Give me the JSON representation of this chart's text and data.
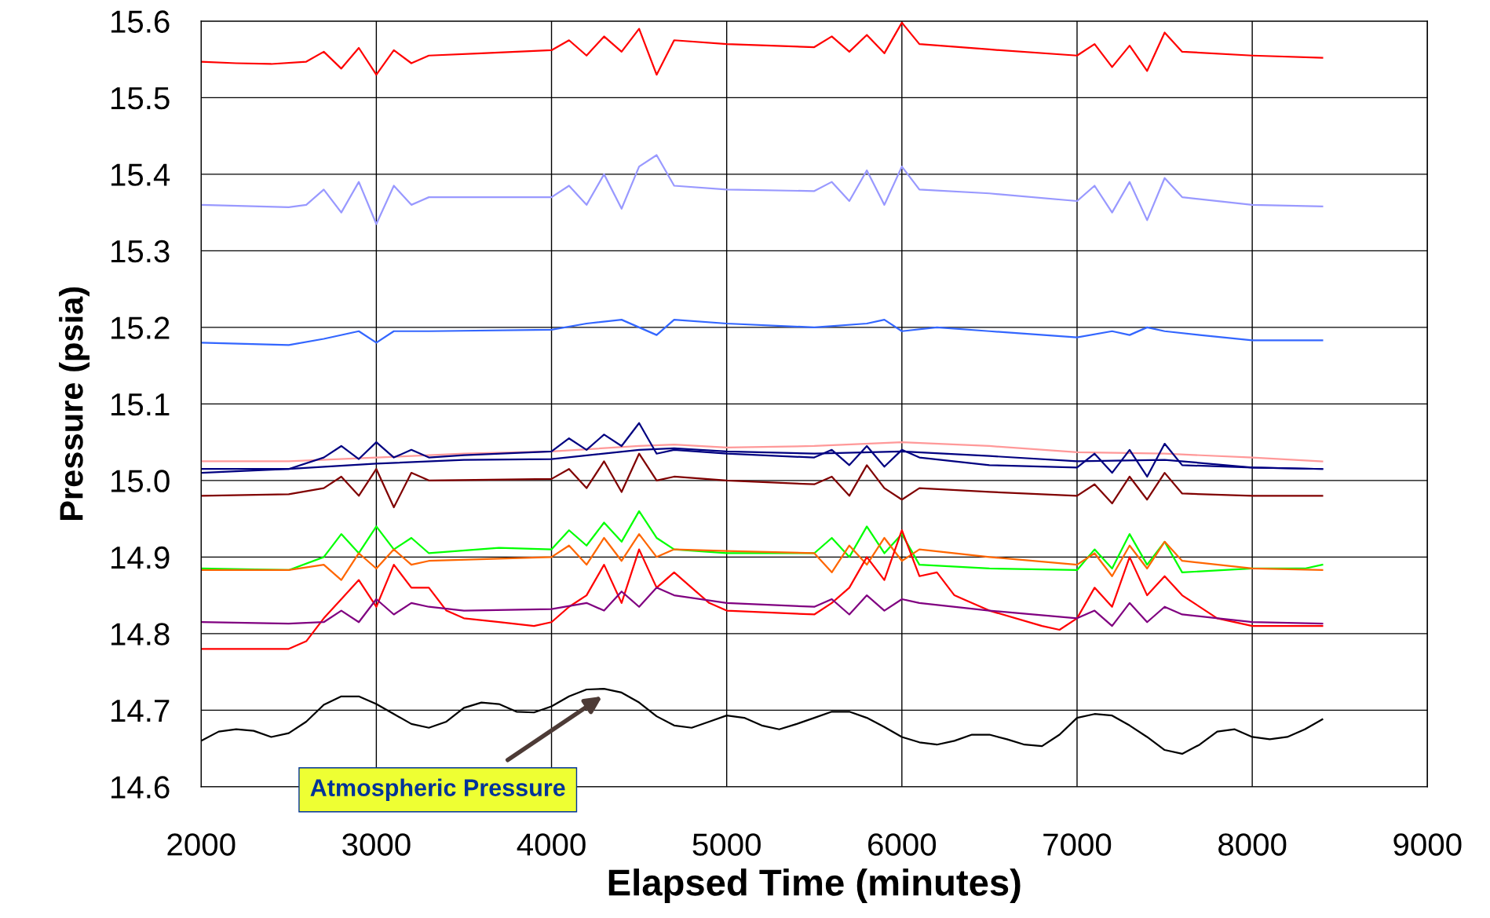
{
  "chart_data": {
    "type": "line",
    "xlabel": "Elapsed Time (minutes)",
    "ylabel": "Pressure (psia)",
    "xlim": [
      2000,
      9000
    ],
    "xticks": [
      2000,
      3000,
      4000,
      5000,
      6000,
      7000,
      8000,
      9000
    ],
    "ylim": [
      14.6,
      15.6
    ],
    "yticks": [
      {
        "value": 14.6,
        "label": "14.6"
      },
      {
        "value": 14.7,
        "label": "14.7"
      },
      {
        "value": 14.8,
        "label": "14.8"
      },
      {
        "value": 14.9,
        "label": "14.9"
      },
      {
        "value": 15.0,
        "label": "15.0"
      },
      {
        "value": 15.1,
        "label": "15.1"
      },
      {
        "value": 15.2,
        "label": "15.2"
      },
      {
        "value": 15.3,
        "label": "15.3"
      },
      {
        "value": 15.4,
        "label": "15.4"
      },
      {
        "value": 15.5,
        "label": "15.5"
      },
      {
        "value": 15.6,
        "label": "15.6"
      }
    ],
    "grid": true,
    "legend": false,
    "marker": "none",
    "line_style": "solid",
    "annotations": [
      "Atmospheric Pressure"
    ],
    "series": [
      {
        "color": "#ff0000",
        "x": [
          2000,
          2200,
          2400,
          2600,
          2700,
          2800,
          2900,
          3000,
          3100,
          3200,
          3300,
          3600,
          4000,
          4100,
          4200,
          4300,
          4400,
          4500,
          4600,
          4700,
          5000,
          5500,
          5600,
          5700,
          5800,
          5900,
          6000,
          6100,
          6500,
          7000,
          7100,
          7200,
          7300,
          7400,
          7500,
          7600,
          8000,
          8400
        ],
        "values": [
          15.547,
          15.545,
          15.544,
          15.547,
          15.56,
          15.538,
          15.565,
          15.53,
          15.562,
          15.545,
          15.555,
          15.558,
          15.562,
          15.575,
          15.555,
          15.58,
          15.56,
          15.59,
          15.53,
          15.575,
          15.57,
          15.566,
          15.58,
          15.56,
          15.582,
          15.558,
          15.598,
          15.57,
          15.563,
          15.555,
          15.57,
          15.54,
          15.568,
          15.535,
          15.585,
          15.56,
          15.555,
          15.552
        ]
      },
      {
        "color": "#9999ff",
        "x": [
          2000,
          2500,
          2600,
          2700,
          2800,
          2900,
          3000,
          3100,
          3200,
          3300,
          3600,
          4000,
          4100,
          4200,
          4300,
          4400,
          4500,
          4600,
          4700,
          5000,
          5500,
          5600,
          5700,
          5800,
          5900,
          6000,
          6100,
          6500,
          7000,
          7100,
          7200,
          7300,
          7400,
          7500,
          7600,
          8000,
          8400
        ],
        "values": [
          15.36,
          15.357,
          15.36,
          15.38,
          15.35,
          15.39,
          15.335,
          15.385,
          15.36,
          15.37,
          15.37,
          15.37,
          15.385,
          15.36,
          15.4,
          15.355,
          15.41,
          15.425,
          15.385,
          15.38,
          15.378,
          15.39,
          15.365,
          15.405,
          15.36,
          15.41,
          15.38,
          15.375,
          15.365,
          15.385,
          15.35,
          15.39,
          15.34,
          15.395,
          15.37,
          15.36,
          15.358
        ]
      },
      {
        "color": "#3366ff",
        "x": [
          2000,
          2500,
          2700,
          2900,
          3000,
          3100,
          3300,
          4000,
          4200,
          4400,
          4500,
          4600,
          4700,
          5000,
          5500,
          5800,
          5900,
          6000,
          6200,
          6500,
          7000,
          7200,
          7300,
          7400,
          7500,
          7700,
          8000,
          8400
        ],
        "values": [
          15.18,
          15.177,
          15.185,
          15.195,
          15.18,
          15.195,
          15.195,
          15.197,
          15.205,
          15.21,
          15.2,
          15.19,
          15.21,
          15.205,
          15.2,
          15.205,
          15.21,
          15.195,
          15.2,
          15.195,
          15.187,
          15.195,
          15.19,
          15.2,
          15.195,
          15.19,
          15.183,
          15.183
        ]
      },
      {
        "color": "#ff9999",
        "x": [
          2000,
          2500,
          3000,
          3500,
          4000,
          4500,
          4700,
          5000,
          5500,
          6000,
          6500,
          7000,
          7500,
          8000,
          8400
        ],
        "values": [
          15.025,
          15.025,
          15.03,
          15.035,
          15.038,
          15.045,
          15.047,
          15.043,
          15.045,
          15.05,
          15.045,
          15.037,
          15.035,
          15.03,
          15.025
        ]
      },
      {
        "color": "#000080",
        "x": [
          2000,
          2500,
          2700,
          2800,
          2900,
          3000,
          3100,
          3200,
          3300,
          3500,
          4000,
          4100,
          4200,
          4300,
          4400,
          4500,
          4600,
          4700,
          5000,
          5500,
          5600,
          5700,
          5800,
          5900,
          6000,
          6100,
          6500,
          7000,
          7100,
          7200,
          7300,
          7400,
          7500,
          7600,
          8000,
          8400
        ],
        "values": [
          15.01,
          15.015,
          15.03,
          15.045,
          15.028,
          15.05,
          15.03,
          15.04,
          15.03,
          15.033,
          15.038,
          15.055,
          15.04,
          15.06,
          15.045,
          15.075,
          15.035,
          15.04,
          15.035,
          15.03,
          15.04,
          15.02,
          15.045,
          15.018,
          15.04,
          15.03,
          15.02,
          15.017,
          15.035,
          15.01,
          15.04,
          15.005,
          15.048,
          15.02,
          15.017,
          15.015
        ]
      },
      {
        "color": "#000080",
        "x": [
          2000,
          2500,
          3000,
          3500,
          4000,
          4500,
          4700,
          5000,
          5500,
          6000,
          6500,
          7000,
          7500,
          8000,
          8400
        ],
        "values": [
          15.015,
          15.015,
          15.022,
          15.027,
          15.028,
          15.04,
          15.042,
          15.038,
          15.035,
          15.038,
          15.032,
          15.025,
          15.027,
          15.017,
          15.015
        ]
      },
      {
        "color": "#800000",
        "x": [
          2000,
          2500,
          2700,
          2800,
          2900,
          3000,
          3100,
          3200,
          3300,
          4000,
          4100,
          4200,
          4300,
          4400,
          4500,
          4600,
          4700,
          5000,
          5500,
          5600,
          5700,
          5800,
          5900,
          6000,
          6100,
          6500,
          7000,
          7100,
          7200,
          7300,
          7400,
          7500,
          7600,
          8000,
          8400
        ],
        "values": [
          14.98,
          14.982,
          14.99,
          15.005,
          14.98,
          15.015,
          14.965,
          15.01,
          15.0,
          15.002,
          15.015,
          14.99,
          15.025,
          14.985,
          15.035,
          15.0,
          15.005,
          15.0,
          14.995,
          15.005,
          14.98,
          15.02,
          14.99,
          14.975,
          14.99,
          14.985,
          14.98,
          14.995,
          14.97,
          15.005,
          14.975,
          15.01,
          14.983,
          14.98,
          14.98
        ]
      },
      {
        "color": "#00ff00",
        "x": [
          2000,
          2500,
          2700,
          2800,
          2900,
          3000,
          3100,
          3200,
          3300,
          3700,
          4000,
          4100,
          4200,
          4300,
          4400,
          4500,
          4600,
          4700,
          5000,
          5500,
          5600,
          5700,
          5800,
          5900,
          6000,
          6100,
          6500,
          7000,
          7100,
          7200,
          7300,
          7400,
          7500,
          7600,
          8000,
          8300,
          8400
        ],
        "values": [
          14.885,
          14.883,
          14.9,
          14.93,
          14.905,
          14.94,
          14.91,
          14.925,
          14.905,
          14.912,
          14.91,
          14.935,
          14.915,
          14.945,
          14.92,
          14.96,
          14.925,
          14.91,
          14.905,
          14.905,
          14.925,
          14.9,
          14.94,
          14.905,
          14.93,
          14.89,
          14.885,
          14.883,
          14.91,
          14.885,
          14.93,
          14.89,
          14.92,
          14.88,
          14.885,
          14.885,
          14.89
        ]
      },
      {
        "color": "#ff6600",
        "x": [
          2000,
          2500,
          2700,
          2800,
          2900,
          3000,
          3100,
          3200,
          3300,
          4000,
          4100,
          4200,
          4300,
          4400,
          4500,
          4600,
          4700,
          5000,
          5500,
          5600,
          5700,
          5800,
          5900,
          6000,
          6100,
          6500,
          7000,
          7100,
          7200,
          7300,
          7400,
          7500,
          7600,
          8000,
          8400
        ],
        "values": [
          14.883,
          14.883,
          14.89,
          14.87,
          14.905,
          14.885,
          14.91,
          14.89,
          14.895,
          14.9,
          14.915,
          14.89,
          14.925,
          14.895,
          14.93,
          14.9,
          14.91,
          14.908,
          14.905,
          14.88,
          14.915,
          14.89,
          14.925,
          14.895,
          14.91,
          14.9,
          14.89,
          14.905,
          14.875,
          14.915,
          14.885,
          14.92,
          14.895,
          14.885,
          14.883
        ]
      },
      {
        "color": "#ff0000",
        "x": [
          2000,
          2500,
          2600,
          2700,
          2800,
          2900,
          3000,
          3100,
          3200,
          3300,
          3400,
          3500,
          3700,
          3900,
          4000,
          4100,
          4200,
          4300,
          4400,
          4500,
          4600,
          4700,
          4800,
          4900,
          5000,
          5500,
          5600,
          5700,
          5800,
          5900,
          6000,
          6100,
          6200,
          6300,
          6500,
          6800,
          6900,
          7000,
          7100,
          7200,
          7300,
          7400,
          7500,
          7600,
          7800,
          8000,
          8400
        ],
        "values": [
          14.78,
          14.78,
          14.79,
          14.82,
          14.845,
          14.87,
          14.835,
          14.89,
          14.86,
          14.86,
          14.83,
          14.82,
          14.815,
          14.81,
          14.815,
          14.835,
          14.85,
          14.89,
          14.84,
          14.91,
          14.86,
          14.88,
          14.86,
          14.84,
          14.83,
          14.825,
          14.84,
          14.86,
          14.9,
          14.87,
          14.935,
          14.875,
          14.88,
          14.85,
          14.83,
          14.81,
          14.805,
          14.82,
          14.86,
          14.835,
          14.9,
          14.85,
          14.875,
          14.85,
          14.82,
          14.81,
          14.81
        ]
      },
      {
        "color": "#800080",
        "x": [
          2000,
          2500,
          2700,
          2800,
          2900,
          3000,
          3100,
          3200,
          3300,
          3500,
          4000,
          4200,
          4300,
          4400,
          4500,
          4600,
          4700,
          5000,
          5500,
          5600,
          5700,
          5800,
          5900,
          6000,
          6100,
          6500,
          7000,
          7100,
          7200,
          7300,
          7400,
          7500,
          7600,
          8000,
          8400
        ],
        "values": [
          14.815,
          14.813,
          14.815,
          14.83,
          14.815,
          14.845,
          14.825,
          14.84,
          14.835,
          14.83,
          14.832,
          14.84,
          14.83,
          14.855,
          14.835,
          14.86,
          14.85,
          14.84,
          14.835,
          14.845,
          14.825,
          14.85,
          14.83,
          14.845,
          14.84,
          14.83,
          14.82,
          14.83,
          14.81,
          14.84,
          14.815,
          14.835,
          14.825,
          14.815,
          14.813
        ]
      },
      {
        "color": "#000000",
        "x": [
          2000,
          2100,
          2200,
          2300,
          2400,
          2500,
          2600,
          2700,
          2800,
          2900,
          3000,
          3100,
          3200,
          3300,
          3400,
          3500,
          3600,
          3700,
          3800,
          3900,
          4000,
          4100,
          4200,
          4300,
          4400,
          4500,
          4600,
          4700,
          4800,
          4900,
          5000,
          5100,
          5200,
          5300,
          5400,
          5500,
          5600,
          5700,
          5800,
          5900,
          6000,
          6100,
          6200,
          6300,
          6400,
          6500,
          6600,
          6700,
          6800,
          6900,
          7000,
          7100,
          7200,
          7300,
          7400,
          7500,
          7600,
          7700,
          7800,
          7900,
          8000,
          8100,
          8200,
          8300,
          8400
        ],
        "values": [
          14.66,
          14.672,
          14.675,
          14.673,
          14.665,
          14.67,
          14.685,
          14.707,
          14.718,
          14.718,
          14.708,
          14.695,
          14.682,
          14.677,
          14.685,
          14.703,
          14.71,
          14.708,
          14.698,
          14.697,
          14.705,
          14.718,
          14.727,
          14.728,
          14.723,
          14.71,
          14.692,
          14.68,
          14.677,
          14.685,
          14.693,
          14.69,
          14.68,
          14.675,
          14.682,
          14.69,
          14.698,
          14.698,
          14.69,
          14.678,
          14.665,
          14.658,
          14.655,
          14.66,
          14.668,
          14.668,
          14.662,
          14.655,
          14.653,
          14.668,
          14.69,
          14.695,
          14.693,
          14.68,
          14.665,
          14.648,
          14.643,
          14.655,
          14.672,
          14.675,
          14.665,
          14.662,
          14.665,
          14.675,
          14.688
        ]
      }
    ]
  }
}
